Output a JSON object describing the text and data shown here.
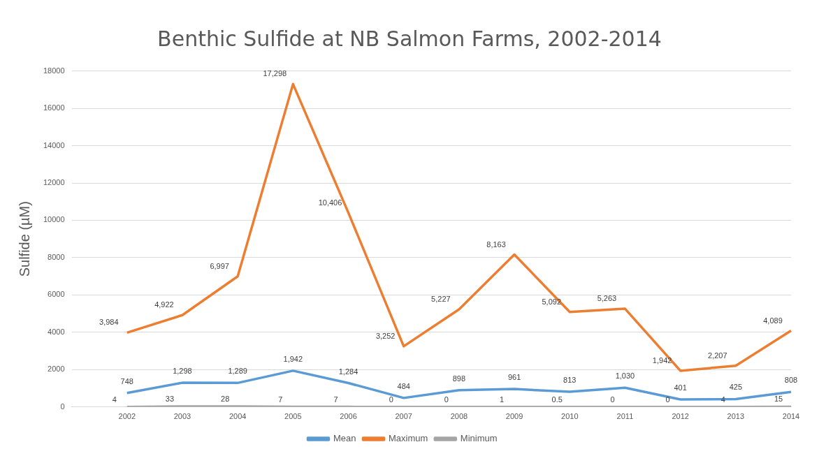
{
  "chart_data": {
    "type": "line",
    "title": "Benthic Sulfide at NB Salmon Farms, 2002-2014",
    "ylabel": "Sulfide (µM)",
    "categories": [
      null,
      "2002",
      "2003",
      "2004",
      "2005",
      "2006",
      "2007",
      "2008",
      "2009",
      "2010",
      "2011",
      "2012",
      "2013",
      "2014"
    ],
    "series": [
      {
        "name": "Mean",
        "color": "#5b9bd5",
        "values": [
          null,
          748,
          1298,
          1289,
          1942,
          1284,
          484,
          898,
          961,
          813,
          1030,
          401,
          425,
          808
        ],
        "value_labels": [
          null,
          "748",
          "1,298",
          "1,289",
          "1,942",
          "1,284",
          "484",
          "898",
          "961",
          "813",
          "1,030",
          "401",
          "425",
          "808"
        ]
      },
      {
        "name": "Maximum",
        "color": "#ed7d31",
        "values": [
          null,
          3984,
          4922,
          6997,
          17298,
          10406,
          3252,
          5227,
          8163,
          5092,
          5263,
          1942,
          2207,
          4089
        ],
        "value_labels": [
          null,
          "3,984",
          "4,922",
          "6,997",
          "17,298",
          "10,406",
          "3,252",
          "5,227",
          "8,163",
          "5,092",
          "5,263",
          "1,942",
          "2,207",
          "4,089"
        ]
      },
      {
        "name": "Minimum",
        "color": "#a5a5a5",
        "values": [
          null,
          4,
          33,
          28,
          7,
          7,
          0,
          0,
          1,
          0.5,
          0,
          0,
          4,
          15
        ],
        "value_labels": [
          null,
          "4",
          "33",
          "28",
          "7",
          "7",
          "0",
          "0",
          "1",
          "0.5",
          "0",
          "0",
          "4",
          "15"
        ]
      }
    ],
    "ylim": [
      0,
      18000
    ],
    "yticks": [
      0,
      2000,
      4000,
      6000,
      8000,
      10000,
      12000,
      14000,
      16000,
      18000
    ],
    "grid": "y",
    "legend": "bottom",
    "marker": "none",
    "line_style": "solid"
  }
}
